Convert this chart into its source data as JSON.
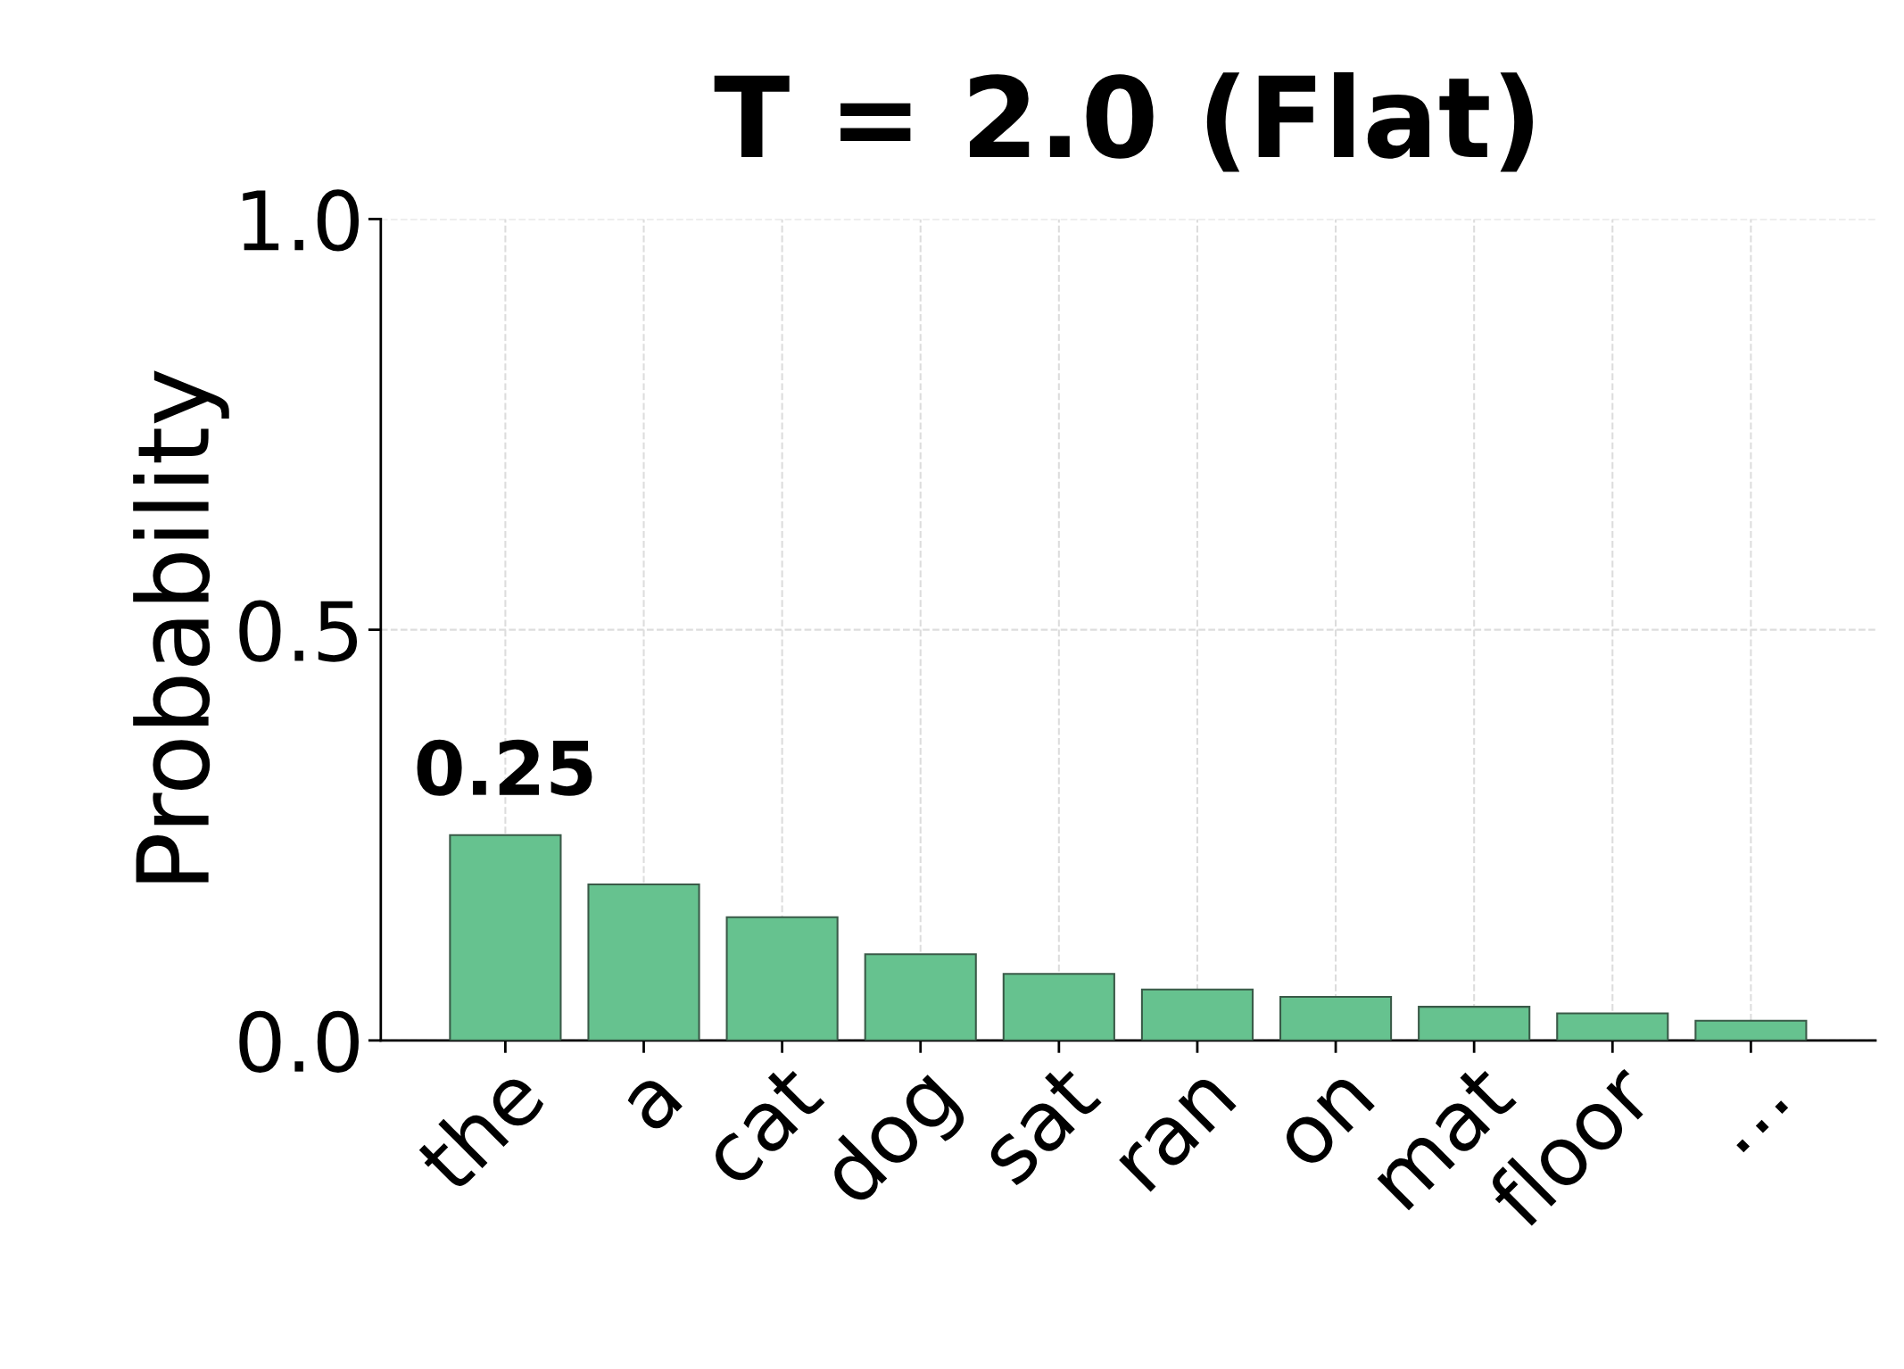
{
  "chart_data": {
    "type": "bar",
    "title": "T = 2.0 (Flat)",
    "ylabel": "Probability",
    "categories": [
      "the",
      "a",
      "cat",
      "dog",
      "sat",
      "ran",
      "on",
      "mat",
      "floor",
      "…"
    ],
    "values": [
      0.25,
      0.19,
      0.15,
      0.105,
      0.081,
      0.062,
      0.053,
      0.041,
      0.033,
      0.024
    ],
    "value_labels": [
      "0.25",
      null,
      null,
      null,
      null,
      null,
      null,
      null,
      null,
      null
    ],
    "color": "#66c28f",
    "ylim": [
      0,
      1.0
    ],
    "yticks": [
      {
        "value": 0,
        "label": "0.0"
      },
      0.5,
      {
        "value": 1,
        "label": "1.0"
      }
    ],
    "grid": true,
    "legend": false
  }
}
